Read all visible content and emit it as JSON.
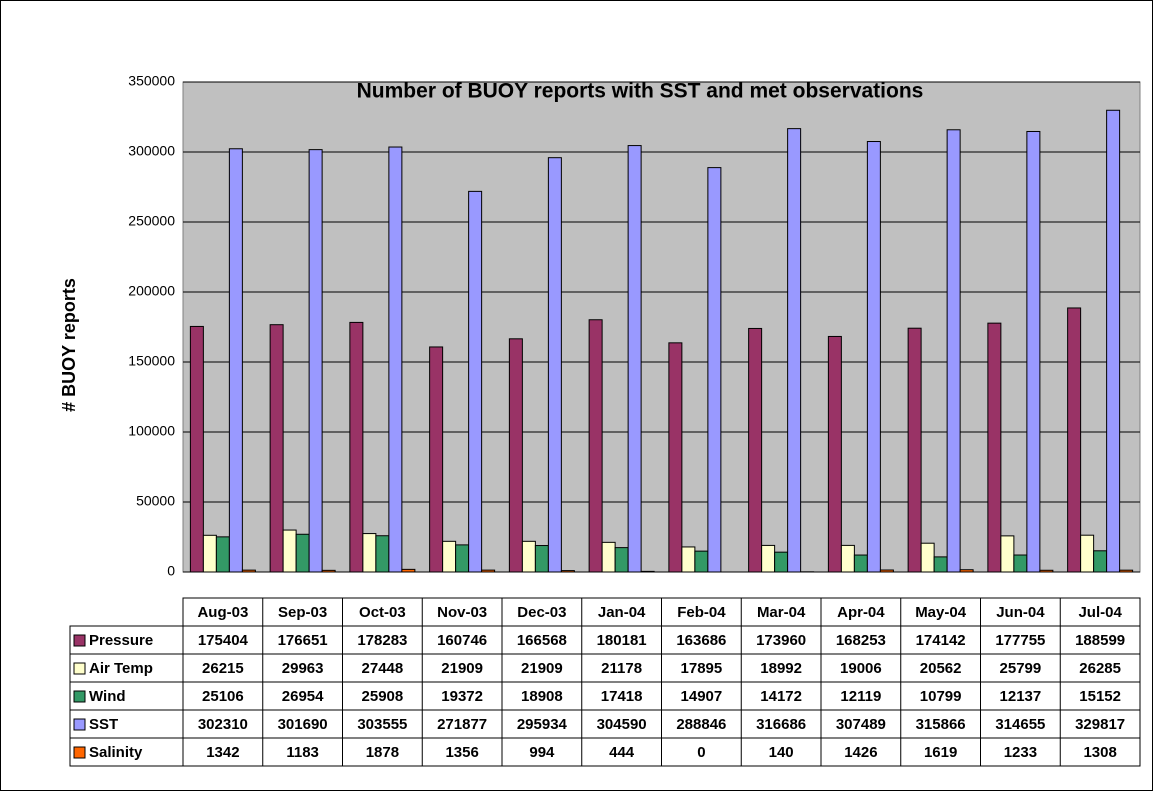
{
  "chart_data": {
    "type": "bar",
    "title": "Number of BUOY reports with SST and met observations",
    "ylabel": "# BUOY reports",
    "categories": [
      "Aug-03",
      "Sep-03",
      "Oct-03",
      "Nov-03",
      "Dec-03",
      "Jan-04",
      "Feb-04",
      "Mar-04",
      "Apr-04",
      "May-04",
      "Jun-04",
      "Jul-04"
    ],
    "series": [
      {
        "name": "Pressure",
        "color": "#993366",
        "values": [
          175404,
          176651,
          178283,
          160746,
          166568,
          180181,
          163686,
          173960,
          168253,
          174142,
          177755,
          188599
        ]
      },
      {
        "name": "Air Temp",
        "color": "#ffffcc",
        "values": [
          26215,
          29963,
          27448,
          21909,
          21909,
          21178,
          17895,
          18992,
          19006,
          20562,
          25799,
          26285
        ]
      },
      {
        "name": "Wind",
        "color": "#339966",
        "values": [
          25106,
          26954,
          25908,
          19372,
          18908,
          17418,
          14907,
          14172,
          12119,
          10799,
          12137,
          15152
        ]
      },
      {
        "name": "SST",
        "color": "#9999ff",
        "values": [
          302310,
          301690,
          303555,
          271877,
          295934,
          304590,
          288846,
          316686,
          307489,
          315866,
          314655,
          329817
        ]
      },
      {
        "name": "Salinity",
        "color": "#ff6600",
        "values": [
          1342,
          1183,
          1878,
          1356,
          994,
          444,
          0,
          140,
          1426,
          1619,
          1233,
          1308
        ]
      }
    ],
    "ylim": [
      0,
      350000
    ],
    "yticks": [
      0,
      50000,
      100000,
      150000,
      200000,
      250000,
      300000,
      350000
    ],
    "grid": true
  }
}
